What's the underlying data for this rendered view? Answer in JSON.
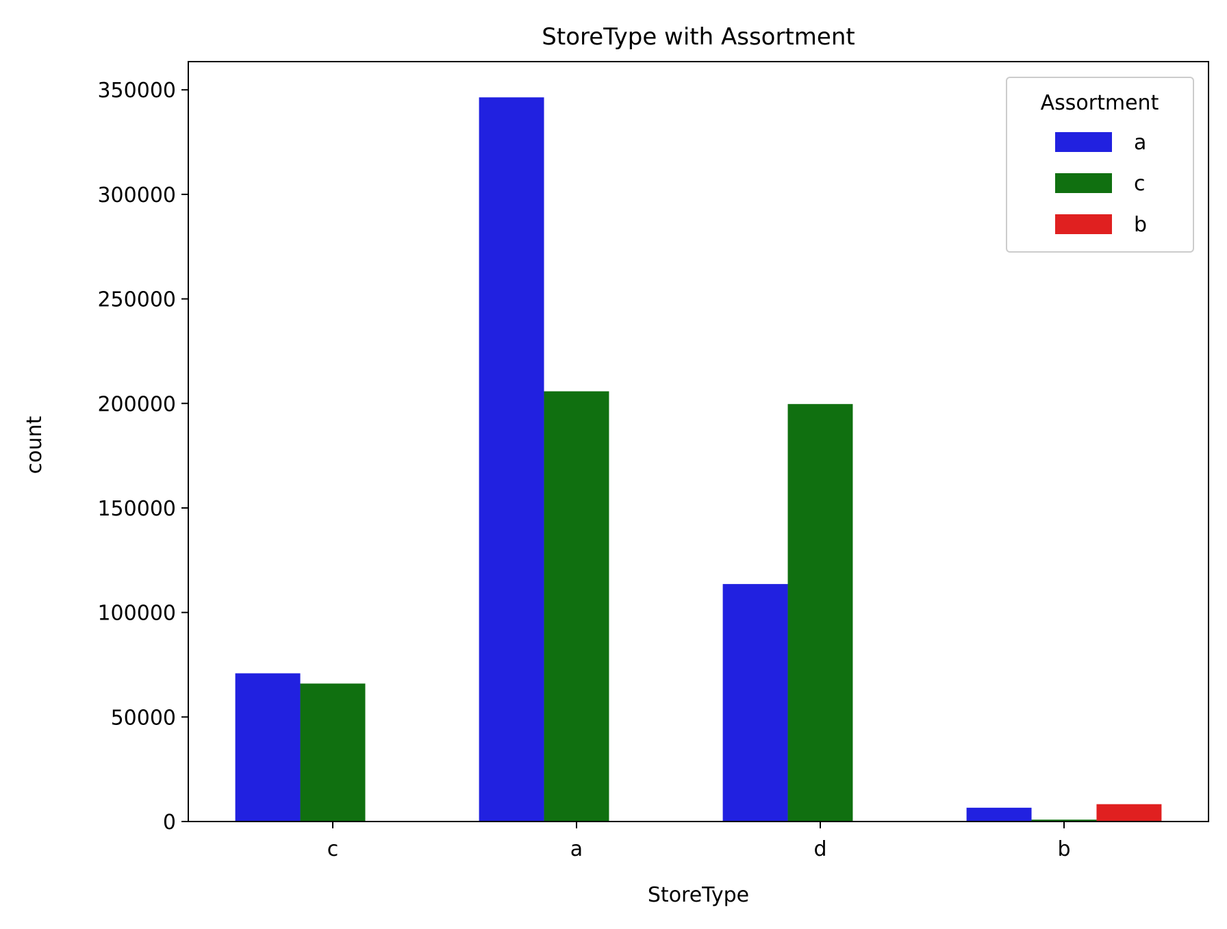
{
  "chart_data": {
    "type": "bar",
    "title": "StoreType with Assortment",
    "xlabel": "StoreType",
    "ylabel": "count",
    "categories": [
      "c",
      "a",
      "d",
      "b"
    ],
    "series": [
      {
        "name": "a",
        "color": "#2121e0",
        "values": [
          70900,
          346400,
          113600,
          6600
        ]
      },
      {
        "name": "c",
        "color": "#107010",
        "values": [
          66000,
          205800,
          199700,
          900
        ]
      },
      {
        "name": "b",
        "color": "#e02020",
        "values": [
          0,
          0,
          0,
          8300
        ]
      }
    ],
    "ylim": [
      0,
      363500
    ],
    "yticks": [
      0,
      50000,
      100000,
      150000,
      200000,
      250000,
      300000,
      350000
    ],
    "ytick_labels": [
      "0",
      "50000",
      "100000",
      "150000",
      "200000",
      "250000",
      "300000",
      "350000"
    ],
    "legend": {
      "title": "Assortment",
      "placement": "top-right"
    },
    "grid": false
  }
}
